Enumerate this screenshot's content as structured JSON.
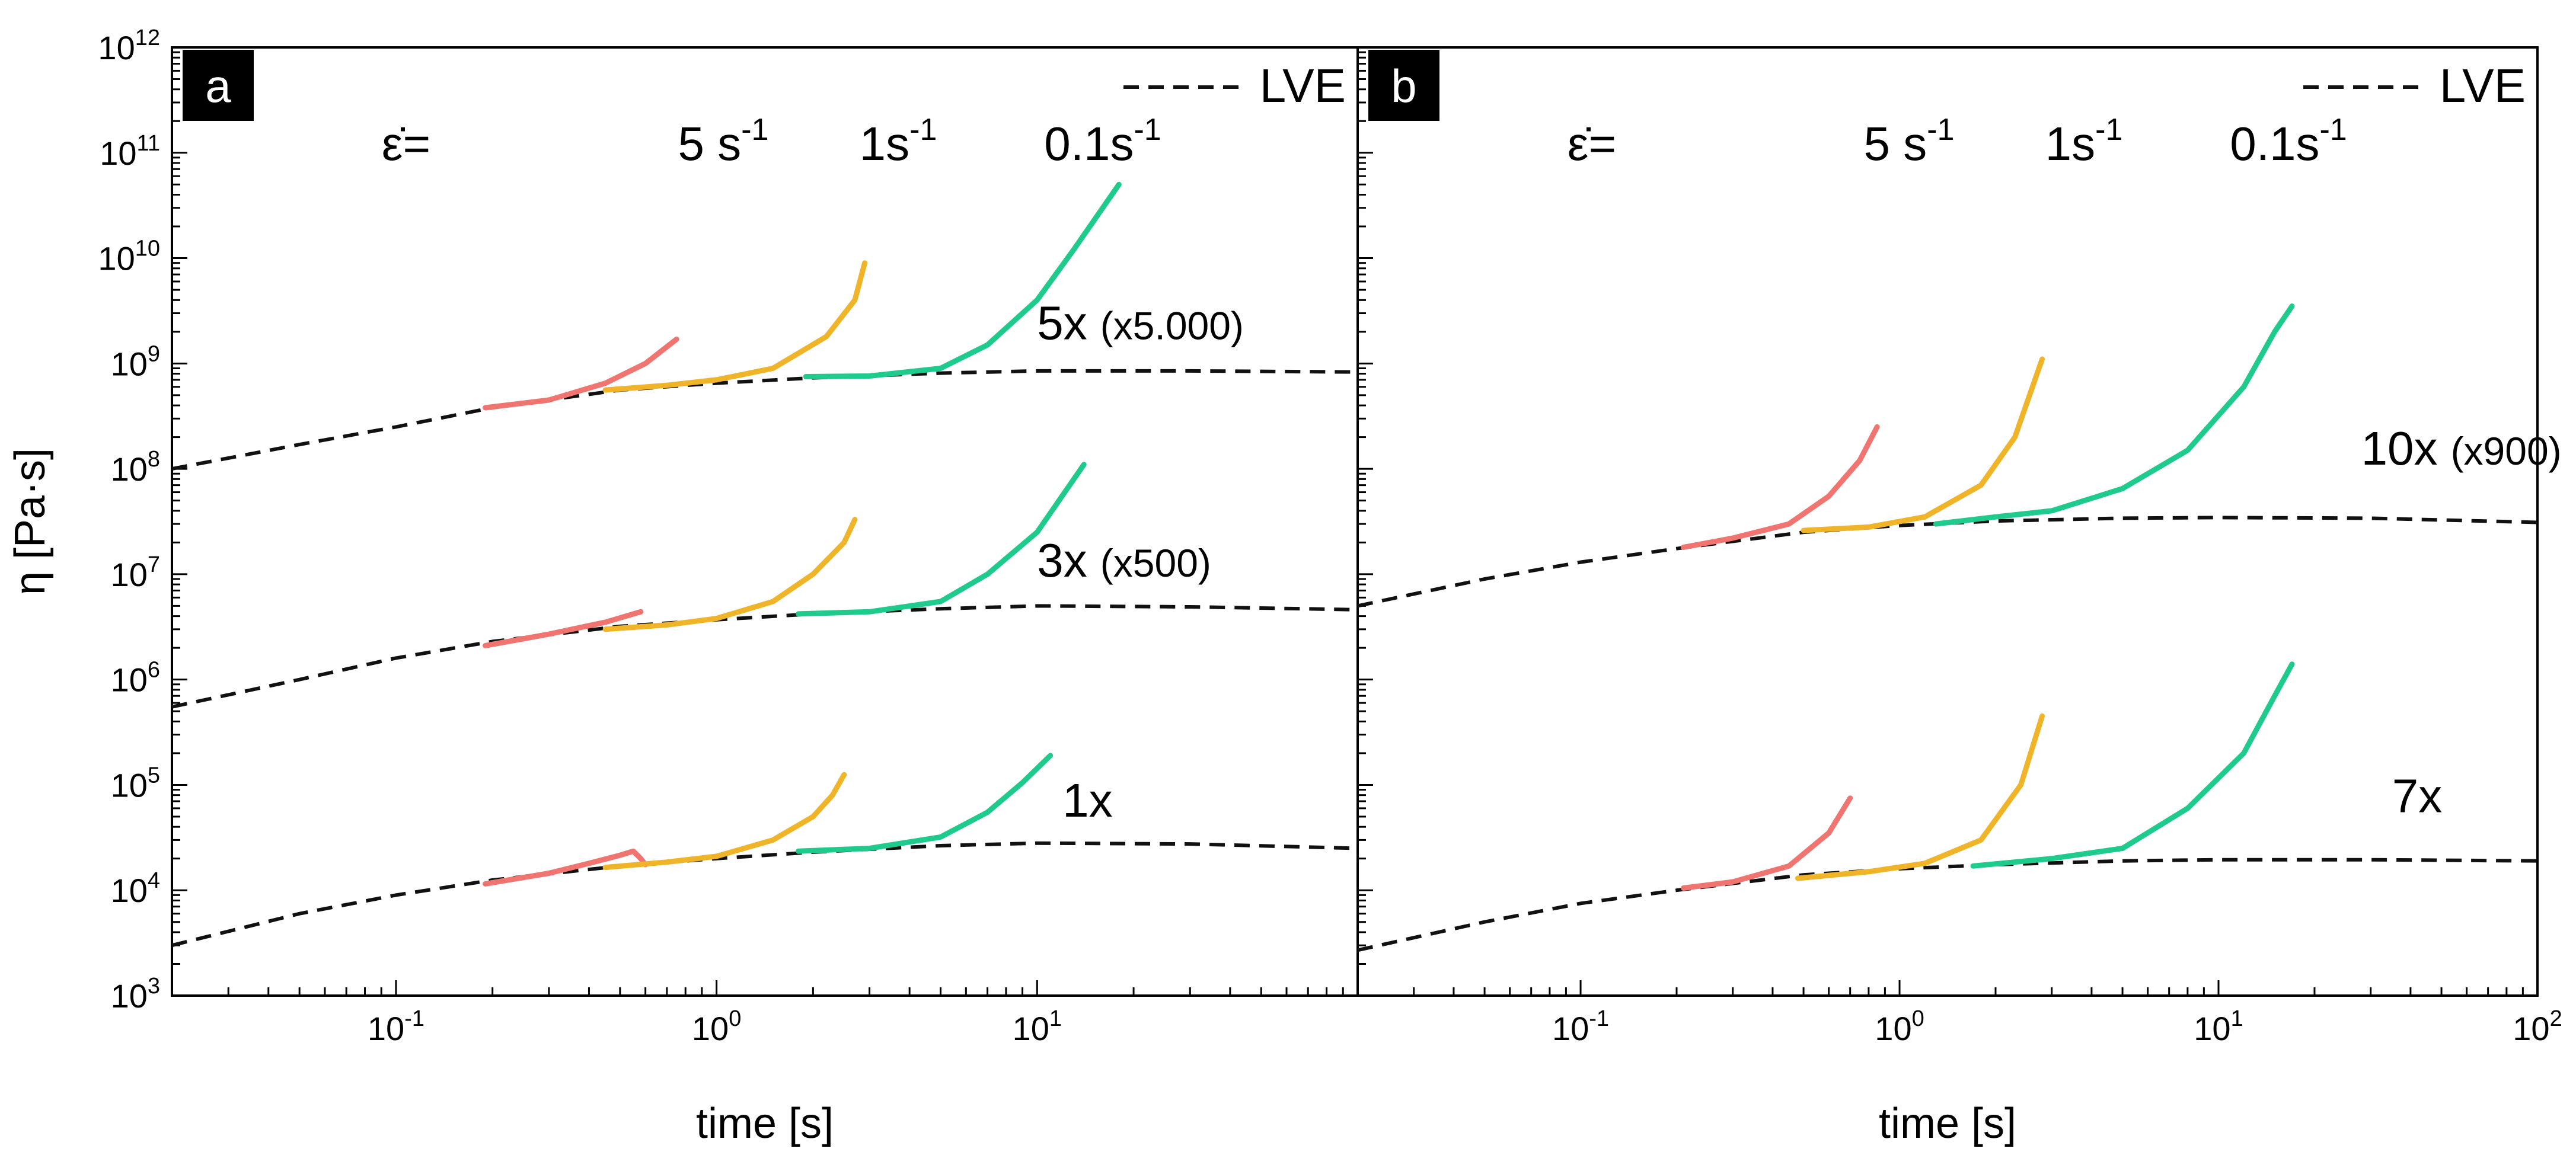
{
  "chart_data": [
    {
      "type": "line",
      "panel": "a",
      "xscale": "log",
      "yscale": "log",
      "xlim": [
        0.02,
        100
      ],
      "ylim": [
        1000,
        1000000000000
      ],
      "xlabel": "time [s]",
      "ylabel": "η [Pa·s]",
      "x_ticks": [
        {
          "v": 0.1,
          "base": "10",
          "exp": "-1"
        },
        {
          "v": 1,
          "base": "10",
          "exp": "0"
        },
        {
          "v": 10,
          "base": "10",
          "exp": "1"
        }
      ],
      "y_ticks": [
        {
          "v": 1000,
          "base": "10",
          "exp": "3"
        },
        {
          "v": 10000,
          "base": "10",
          "exp": "4"
        },
        {
          "v": 100000,
          "base": "10",
          "exp": "5"
        },
        {
          "v": 1000000,
          "base": "10",
          "exp": "6"
        },
        {
          "v": 10000000,
          "base": "10",
          "exp": "7"
        },
        {
          "v": 100000000,
          "base": "10",
          "exp": "8"
        },
        {
          "v": 1000000000,
          "base": "10",
          "exp": "9"
        },
        {
          "v": 10000000000,
          "base": "10",
          "exp": "10"
        },
        {
          "v": 100000000000,
          "base": "10",
          "exp": "11"
        },
        {
          "v": 1000000000000,
          "base": "10",
          "exp": "12"
        }
      ],
      "legend": {
        "label": "LVE",
        "position": "top-right"
      },
      "rate_prefix": "ε̇=",
      "rates": [
        {
          "text": "5 s",
          "sup": "-1"
        },
        {
          "text": "1s",
          "sup": "-1"
        },
        {
          "text": "0.1s",
          "sup": "-1"
        }
      ],
      "series": [
        {
          "name": "LVE 1x",
          "style": "dashed",
          "color": "#111111",
          "x": [
            0.02,
            0.05,
            0.1,
            0.2,
            0.5,
            1,
            2,
            5,
            10,
            30,
            100
          ],
          "y": [
            3000,
            6000,
            9000,
            12500,
            17000,
            20000,
            23000,
            26500,
            28000,
            27500,
            25000
          ]
        },
        {
          "name": "5 s-1 1x",
          "color": "#f07470",
          "x": [
            0.19,
            0.3,
            0.4,
            0.5,
            0.55,
            0.58,
            0.6
          ],
          "y": [
            11500,
            14500,
            18000,
            21500,
            23500,
            20000,
            17500
          ]
        },
        {
          "name": "1 s-1 1x",
          "color": "#f0b429",
          "x": [
            0.45,
            0.7,
            1,
            1.5,
            2,
            2.3,
            2.5
          ],
          "y": [
            16500,
            18500,
            21000,
            30000,
            50000,
            80000,
            125000
          ]
        },
        {
          "name": "0.1 s-1 1x",
          "color": "#1fcb8c",
          "x": [
            1.8,
            3,
            5,
            7,
            9,
            11
          ],
          "y": [
            23500,
            25000,
            32000,
            55000,
            105000,
            190000
          ]
        },
        {
          "name": "LVE 3x",
          "style": "dashed",
          "color": "#111111",
          "x": [
            0.02,
            0.05,
            0.1,
            0.2,
            0.5,
            1,
            2,
            5,
            10,
            30,
            100
          ],
          "y": [
            550000,
            1000000,
            1600000,
            2300000,
            3200000,
            3700000,
            4200000,
            4700000,
            5000000,
            4900000,
            4600000
          ]
        },
        {
          "name": "5 s-1 3x",
          "color": "#f07470",
          "x": [
            0.19,
            0.3,
            0.45,
            0.58
          ],
          "y": [
            2100000,
            2700000,
            3500000,
            4400000
          ]
        },
        {
          "name": "1 s-1 3x",
          "color": "#f0b429",
          "x": [
            0.45,
            0.7,
            1,
            1.5,
            2,
            2.5,
            2.7
          ],
          "y": [
            3000000,
            3300000,
            3800000,
            5500000,
            10000000,
            20000000,
            33000000
          ]
        },
        {
          "name": "0.1 s-1 3x",
          "color": "#1fcb8c",
          "x": [
            1.8,
            3,
            5,
            7,
            10,
            14
          ],
          "y": [
            4200000,
            4400000,
            5500000,
            10000000,
            25000000,
            110000000
          ]
        },
        {
          "name": "LVE 5x",
          "style": "dashed",
          "color": "#111111",
          "x": [
            0.02,
            0.05,
            0.1,
            0.2,
            0.5,
            1,
            2,
            5,
            10,
            30,
            100
          ],
          "y": [
            100000000,
            170000000,
            250000000,
            380000000,
            560000000,
            650000000,
            730000000,
            810000000,
            850000000,
            850000000,
            830000000
          ]
        },
        {
          "name": "5 s-1 5x",
          "color": "#f07470",
          "x": [
            0.19,
            0.3,
            0.45,
            0.6,
            0.75
          ],
          "y": [
            380000000,
            450000000,
            650000000,
            1000000000,
            1700000000
          ]
        },
        {
          "name": "1 s-1 5x",
          "color": "#f0b429",
          "x": [
            0.45,
            0.7,
            1,
            1.5,
            2.2,
            2.7,
            2.9
          ],
          "y": [
            560000000,
            620000000,
            700000000,
            900000000,
            1800000000,
            4000000000,
            9000000000
          ]
        },
        {
          "name": "0.1 s-1 5x",
          "color": "#1fcb8c",
          "x": [
            1.9,
            3,
            5,
            7,
            10,
            13,
            18
          ],
          "y": [
            750000000,
            760000000,
            900000000,
            1500000000,
            4000000000,
            12000000000,
            50000000000
          ]
        }
      ],
      "annotations": [
        {
          "text": "5x",
          "note": "(x5.000)",
          "x": 10,
          "y": 1700000000
        },
        {
          "text": "3x",
          "note": "(x500)",
          "x": 10,
          "y": 9500000
        },
        {
          "text": "1x",
          "note": "",
          "x": 12,
          "y": 50000
        }
      ]
    },
    {
      "type": "line",
      "panel": "b",
      "xscale": "log",
      "yscale": "log",
      "xlim": [
        0.02,
        100
      ],
      "ylim": [
        1000,
        1000000000000
      ],
      "xlabel": "time [s]",
      "x_ticks": [
        {
          "v": 0.1,
          "base": "10",
          "exp": "-1"
        },
        {
          "v": 1,
          "base": "10",
          "exp": "0"
        },
        {
          "v": 10,
          "base": "10",
          "exp": "1"
        },
        {
          "v": 100,
          "base": "10",
          "exp": "2"
        }
      ],
      "legend": {
        "label": "LVE",
        "position": "top-right"
      },
      "rate_prefix": "ε̇=",
      "rates": [
        {
          "text": "5 s",
          "sup": "-1"
        },
        {
          "text": "1s",
          "sup": "-1"
        },
        {
          "text": "0.1s",
          "sup": "-1"
        }
      ],
      "series": [
        {
          "name": "LVE 7x",
          "style": "dashed",
          "color": "#111111",
          "x": [
            0.02,
            0.05,
            0.1,
            0.2,
            0.5,
            1,
            2,
            5,
            10,
            30,
            100
          ],
          "y": [
            2700,
            5000,
            7500,
            10000,
            14000,
            16000,
            17500,
            19000,
            19500,
            19500,
            19000
          ]
        },
        {
          "name": "5 s-1 7x",
          "color": "#f07470",
          "x": [
            0.21,
            0.3,
            0.45,
            0.6,
            0.7
          ],
          "y": [
            10500,
            12000,
            17000,
            35000,
            75000
          ]
        },
        {
          "name": "1 s-1 7x",
          "color": "#f0b429",
          "x": [
            0.48,
            0.8,
            1.2,
            1.8,
            2.4,
            2.8
          ],
          "y": [
            13000,
            15000,
            18000,
            30000,
            100000,
            450000
          ]
        },
        {
          "name": "0.1 s-1 7x",
          "color": "#1fcb8c",
          "x": [
            1.7,
            3,
            5,
            8,
            12,
            15,
            17
          ],
          "y": [
            17000,
            20000,
            25000,
            60000,
            200000,
            700000,
            1400000
          ]
        },
        {
          "name": "LVE 10x",
          "style": "dashed",
          "color": "#111111",
          "x": [
            0.02,
            0.05,
            0.1,
            0.2,
            0.5,
            1,
            2,
            5,
            10,
            30,
            100
          ],
          "y": [
            5000000,
            9000000,
            13000000,
            17500000,
            25000000,
            29000000,
            32000000,
            34000000,
            34500000,
            34000000,
            31000000
          ]
        },
        {
          "name": "5 s-1 10x",
          "color": "#f07470",
          "x": [
            0.21,
            0.3,
            0.45,
            0.6,
            0.75,
            0.85
          ],
          "y": [
            18000000,
            22000000,
            30000000,
            55000000,
            120000000,
            250000000
          ]
        },
        {
          "name": "1 s-1 10x",
          "color": "#f0b429",
          "x": [
            0.5,
            0.8,
            1.2,
            1.8,
            2.3,
            2.8
          ],
          "y": [
            26000000,
            28000000,
            35000000,
            70000000,
            200000000,
            1100000000
          ]
        },
        {
          "name": "0.1 s-1 10x",
          "color": "#1fcb8c",
          "x": [
            1.3,
            2,
            3,
            5,
            8,
            12,
            15,
            17
          ],
          "y": [
            30000000,
            35000000,
            40000000,
            65000000,
            150000000,
            600000000,
            2000000000,
            3500000000
          ]
        }
      ],
      "annotations": [
        {
          "text": "10x",
          "note": "(x900)",
          "x": 28,
          "y": 110000000
        },
        {
          "text": "7x",
          "note": "",
          "x": 35,
          "y": 55000
        }
      ]
    }
  ]
}
